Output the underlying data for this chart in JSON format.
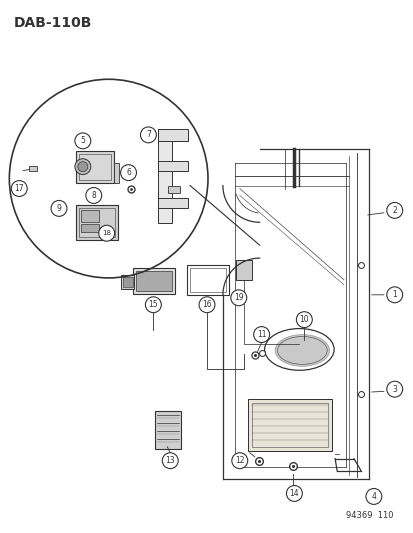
{
  "title": "DAB−110B",
  "bg_color": "#ffffff",
  "footer": "94369  110",
  "lc": "#333333"
}
